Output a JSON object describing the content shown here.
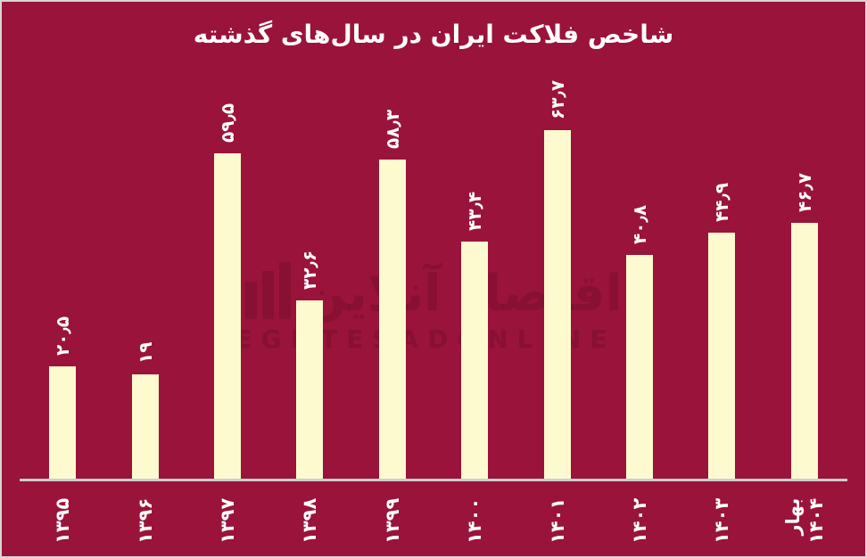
{
  "title": "شاخص فلاکت ایران در سال‌های گذشته",
  "watermark": {
    "fa": "اقتصاد آنلاین",
    "en": "EGHTESADONLINE"
  },
  "colors": {
    "background": "#9A133A",
    "bar": "#FDFACF",
    "label_text": "#FFFFFF",
    "axis_line": "#CDCDCD",
    "frame": "#D6D6D6",
    "watermark": "rgba(25,0,10,0.14)"
  },
  "chart_data": {
    "type": "bar",
    "title": "شاخص فلاکت ایران در سال‌های گذشته",
    "categories": [
      "۱۳۹۵",
      "۱۳۹۶",
      "۱۳۹۷",
      "۱۳۹۸",
      "۱۳۹۹",
      "۱۴۰۰",
      "۱۴۰۱",
      "۱۴۰۲",
      "۱۴۰۳",
      "بهار\n۱۴۰۴"
    ],
    "values": [
      20.5,
      19,
      59.5,
      32.6,
      58.3,
      43.4,
      63.7,
      40.8,
      44.9,
      46.7
    ],
    "value_labels": [
      "۲۰٫۵",
      "۱۹",
      "۵۹٫۵",
      "۳۲٫۶",
      "۵۸٫۳",
      "۴۳٫۴",
      "۶۳٫۷",
      "۴۰٫۸",
      "۴۴٫۹",
      "۴۶٫۷"
    ],
    "xlabel": "",
    "ylabel": "",
    "ylim": [
      0,
      87
    ],
    "y_axis_visible": false,
    "grid": false,
    "legend": false,
    "orientation": "vertical",
    "bar_label_rotation_deg": -90,
    "tick_label_rotation_deg": -90
  }
}
